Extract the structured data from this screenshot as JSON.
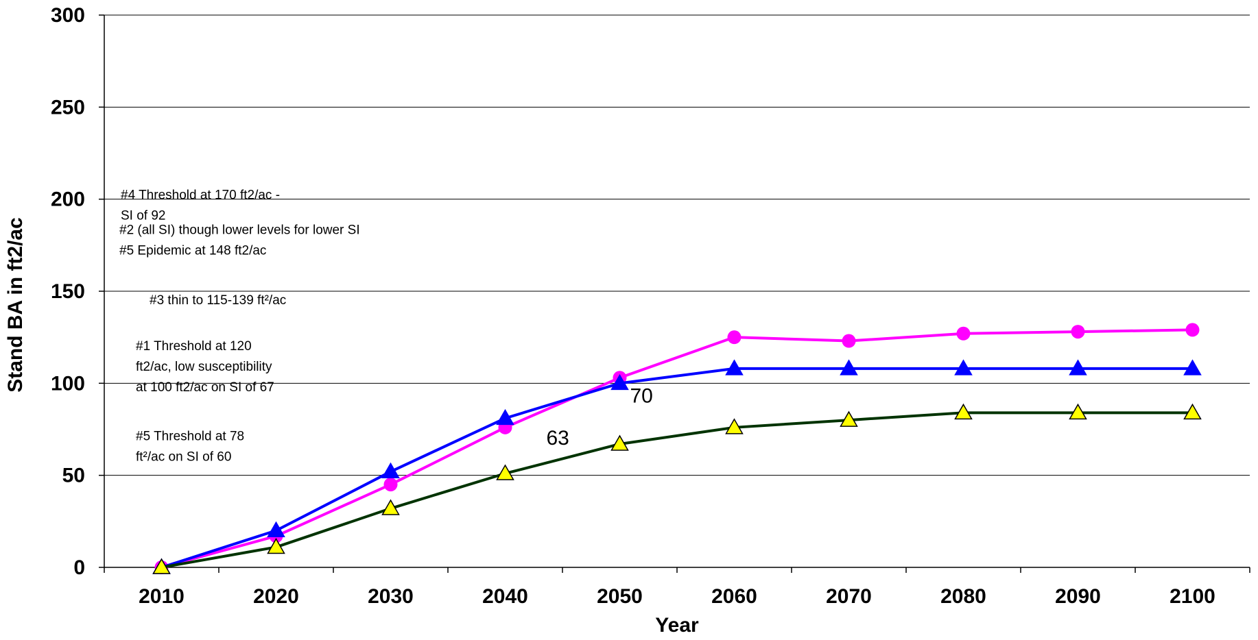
{
  "chart_data": {
    "type": "line",
    "xlabel": "Year",
    "ylabel": "Stand BA in ft2/ac",
    "ylim": [
      0,
      300
    ],
    "yticks": [
      "0",
      "50",
      "100",
      "150",
      "200",
      "250",
      "300"
    ],
    "categories": [
      "2010",
      "2020",
      "2030",
      "2040",
      "2050",
      "2060",
      "2070",
      "2080",
      "2090",
      "2100"
    ],
    "grid": "horizontal",
    "series": [
      {
        "color": "#ff00ff",
        "marker": "circle",
        "values": [
          0,
          17,
          45,
          76,
          103,
          125,
          123,
          127,
          128,
          129
        ]
      },
      {
        "color": "#0000ff",
        "marker": "triangle",
        "values": [
          0,
          20,
          52,
          81,
          100,
          108,
          108,
          108,
          108,
          108
        ]
      },
      {
        "color": "#003300",
        "marker": "triangle-yellow",
        "marker_fill": "#ffff00",
        "values": [
          0,
          11,
          32,
          51,
          67,
          76,
          80,
          84,
          84,
          84
        ]
      }
    ],
    "data_labels": [
      {
        "text": "63",
        "x": "2040",
        "y": 71
      },
      {
        "text": "70",
        "x": "2050",
        "y": 94
      }
    ],
    "annotations": [
      {
        "y": 200,
        "lines": [
          "#4 Threshold at 170 ft2/ac -",
          "SI of 92"
        ]
      },
      {
        "y": 181,
        "lines": [
          "#2 (all SI) though lower levels for lower SI",
          "#5  Epidemic at 148 ft2/ac"
        ]
      },
      {
        "y": 143,
        "lines": [
          "#3 thin to 115-139 ft²/ac"
        ]
      },
      {
        "y": 118,
        "lines": [
          "#1 Threshold at 120",
          "ft2/ac, low  susceptibility",
          "at 100 ft2/ac on SI of 67"
        ]
      },
      {
        "y": 69,
        "lines": [
          "#5 Threshold at 78",
          "ft²/ac  on SI of 60"
        ]
      }
    ]
  }
}
